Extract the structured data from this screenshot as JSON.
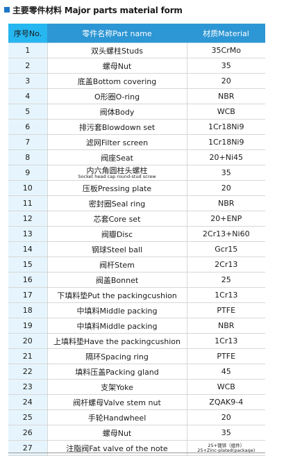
{
  "heading": "主要零件材料 Major parts material form",
  "columns": {
    "no": "序号No.",
    "name": "零件名称Part name",
    "material": "材质Material"
  },
  "rows": [
    {
      "no": "1",
      "name": "双头螺柱Studs",
      "material": "35CrMo"
    },
    {
      "no": "2",
      "name": "螺母Nut",
      "material": "35"
    },
    {
      "no": "3",
      "name": "底盖Bottom covering",
      "material": "20"
    },
    {
      "no": "4",
      "name": "O形圈O-ring",
      "material": "NBR"
    },
    {
      "no": "5",
      "name": "阀体Body",
      "material": "WCB"
    },
    {
      "no": "6",
      "name": "排污套Blowdown set",
      "material": "1Cr18Ni9"
    },
    {
      "no": "7",
      "name": "滤网Filter screen",
      "material": "1Cr18Ni9"
    },
    {
      "no": "8",
      "name": "阀座Seat",
      "material": "20+Ni45"
    },
    {
      "no": "9",
      "name": "内六角圆柱头螺柱",
      "name_sub": "Socket head cap round-stud screw",
      "material": "35"
    },
    {
      "no": "10",
      "name": "压板Pressing plate",
      "material": "20"
    },
    {
      "no": "11",
      "name": "密封圈Seal ring",
      "material": "NBR"
    },
    {
      "no": "12",
      "name": "芯套Core set",
      "material": "20+ENP"
    },
    {
      "no": "13",
      "name": "阀瓣Disc",
      "material": "2Cr13+Ni60"
    },
    {
      "no": "14",
      "name": "钢球Steel ball",
      "material": "Gcr15"
    },
    {
      "no": "15",
      "name": "阀杆Stem",
      "material": "2Cr13"
    },
    {
      "no": "16",
      "name": "阀盖Bonnet",
      "material": "25"
    },
    {
      "no": "17",
      "name": "下填料垫Put the packingcushion",
      "material": "1Cr13"
    },
    {
      "no": "18",
      "name": "中填料Middle packing",
      "material": "PTFE"
    },
    {
      "no": "19",
      "name": "中填料Middle packing",
      "material": "NBR"
    },
    {
      "no": "20",
      "name": "上填料垫Have the packingcushion",
      "material": "1Cr13"
    },
    {
      "no": "21",
      "name": "隔环Spacing ring",
      "material": "PTFE"
    },
    {
      "no": "22",
      "name": "填料压盖Packing gland",
      "material": "45"
    },
    {
      "no": "23",
      "name": "支架Yoke",
      "material": "WCB"
    },
    {
      "no": "24",
      "name": "阀杆螺母Valve stem nut",
      "material": "ZQAK9-4"
    },
    {
      "no": "25",
      "name": "手轮Handwheel",
      "material": "20"
    },
    {
      "no": "26",
      "name": "螺母Nut",
      "material": "35"
    },
    {
      "no": "27",
      "name": "注脂阀Fat valve of the note",
      "material": "25+镀锌（组件）",
      "material_sub": "25+Zinc-plated(package)"
    }
  ]
}
